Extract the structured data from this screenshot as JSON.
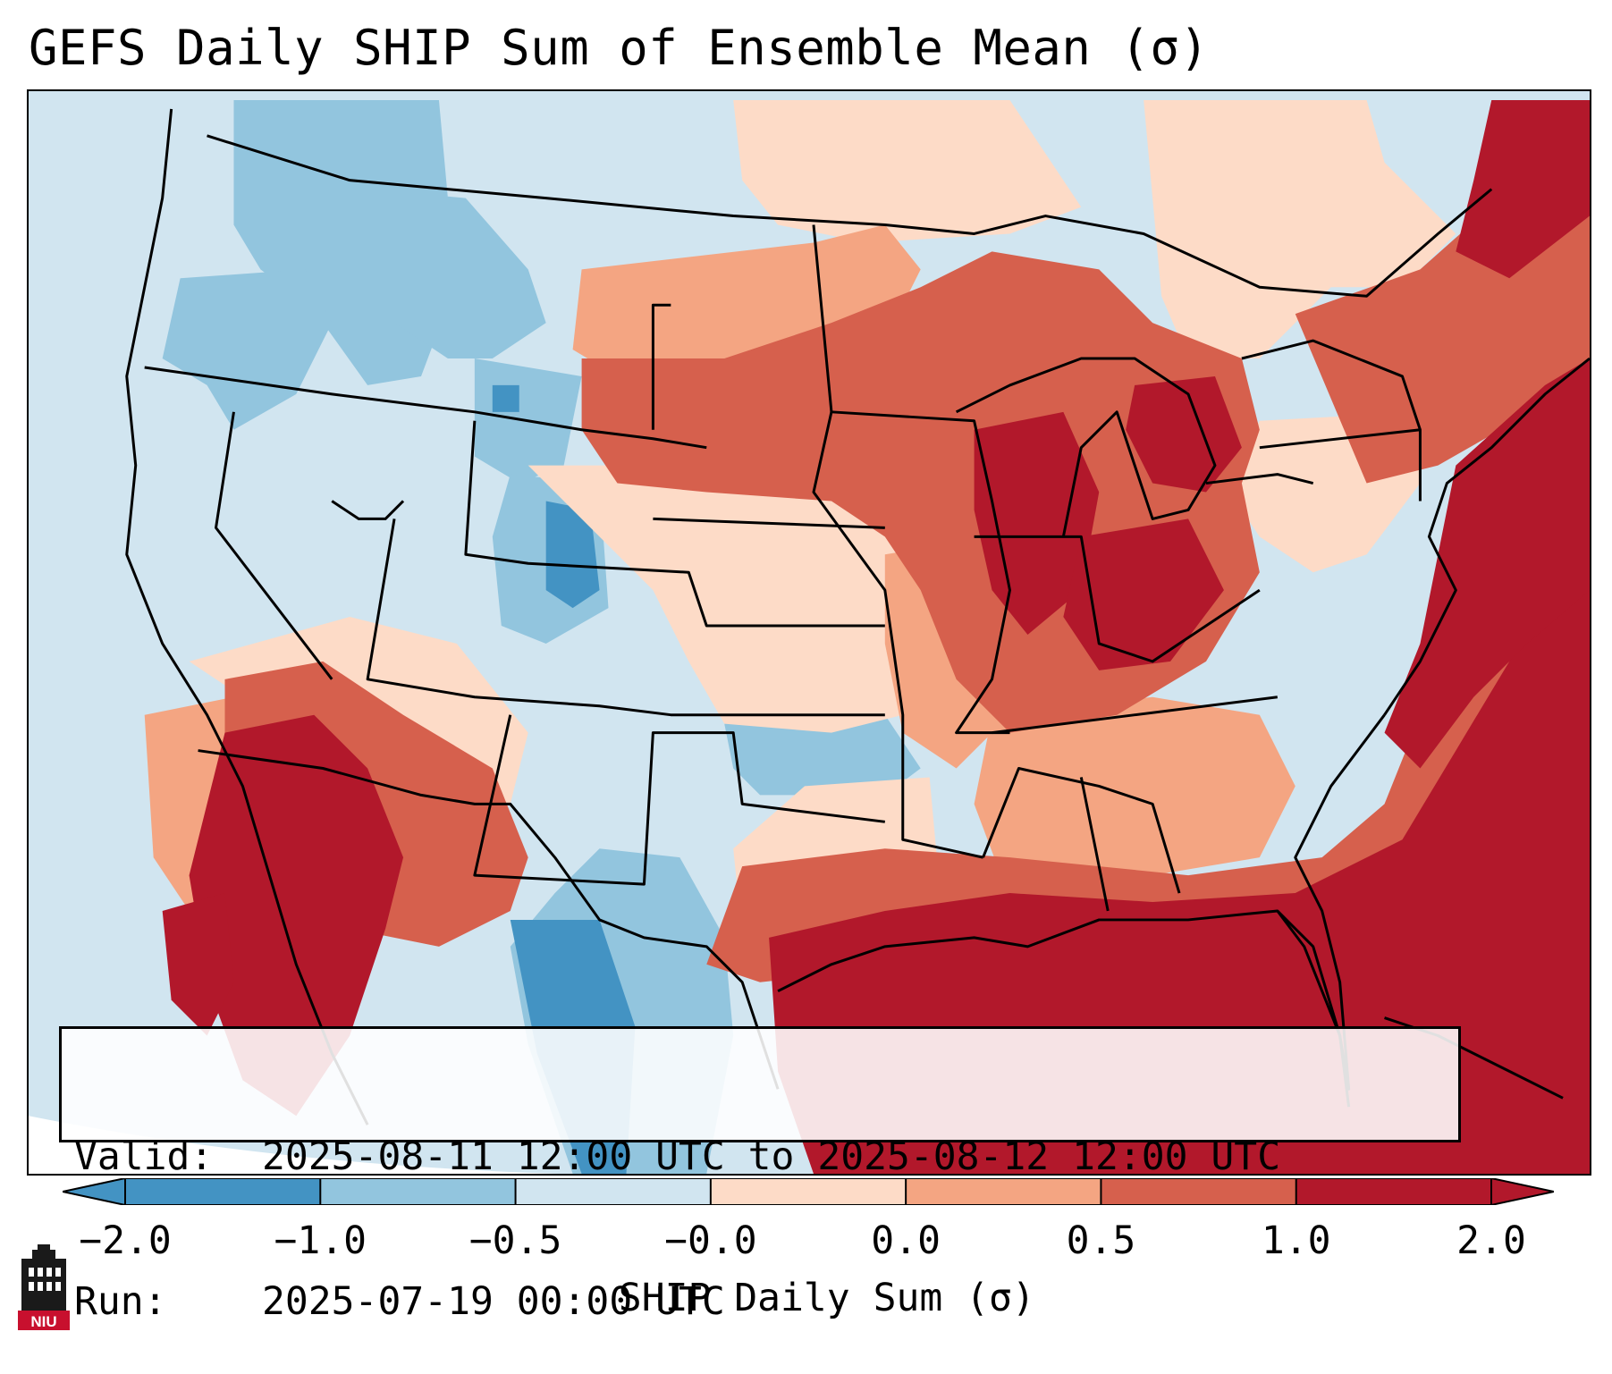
{
  "title": "GEFS Daily SHIP Sum of Ensemble Mean (σ)",
  "info": {
    "valid_label": "Valid:",
    "valid_value": "2025-08-11 12:00 UTC to 2025-08-12 12:00 UTC",
    "run_label": "Run:",
    "run_value": "2025-07-19 00:00 UTC"
  },
  "colorbar": {
    "label": "SHIP Daily Sum (σ)",
    "ticks": [
      "−2.0",
      "−1.0",
      "−0.5",
      "−0.0",
      "0.0",
      "0.5",
      "1.0",
      "2.0"
    ],
    "colors": [
      "#4393c3",
      "#92c5de",
      "#d1e5f0",
      "#f7f7f7",
      "#fddbc7",
      "#f4a582",
      "#d6604d",
      "#b2182b"
    ],
    "extend": "both"
  },
  "logo": {
    "text": "NIU"
  }
}
